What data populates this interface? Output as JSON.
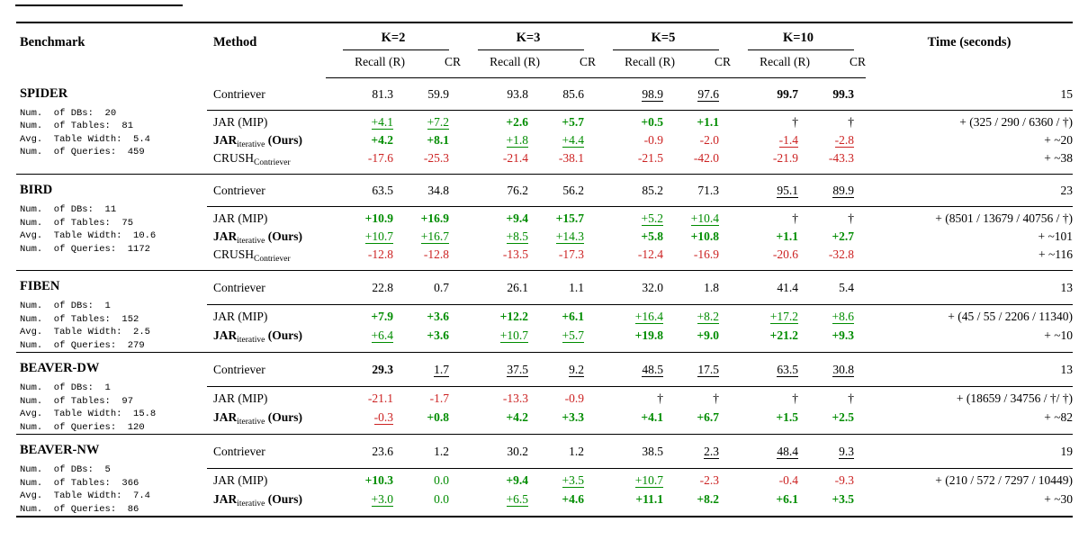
{
  "colors": {
    "green": "#008C00",
    "red": "#CC2222",
    "text": "#000000",
    "rule": "#000000"
  },
  "header": {
    "benchmark": "Benchmark",
    "method": "Method",
    "k_groups": [
      "K=2",
      "K=3",
      "K=5",
      "K=10"
    ],
    "sub_recall": "Recall (R)",
    "sub_cr": "CR",
    "time": "Time (seconds)"
  },
  "sections": [
    {
      "benchmark": "SPIDER",
      "stats": [
        "Num.  of DBs:  20",
        "Num.  of Tables:  81",
        "Avg.  Table Width:  5.4",
        "Num.  of Queries:  459"
      ],
      "contriever": {
        "method": [
          {
            "t": "Contriever"
          }
        ],
        "cells": [
          {
            "t": "81.3"
          },
          {
            "t": "59.9"
          },
          {
            "t": "93.8"
          },
          {
            "t": "85.6"
          },
          {
            "t": "98.9",
            "u": 1
          },
          {
            "t": "97.6",
            "u": 1
          },
          {
            "t": "99.7",
            "b": 1
          },
          {
            "t": "99.3",
            "b": 1
          }
        ],
        "time": "15"
      },
      "delta_rows": [
        {
          "method": [
            {
              "t": "JAR (MIP)"
            }
          ],
          "cells": [
            {
              "t": "+4.1",
              "c": "g",
              "u": 1
            },
            {
              "t": "+7.2",
              "c": "g",
              "u": 1
            },
            {
              "t": "+2.6",
              "c": "g",
              "b": 1
            },
            {
              "t": "+5.7",
              "c": "g",
              "b": 1
            },
            {
              "t": "+0.5",
              "c": "g",
              "b": 1
            },
            {
              "t": "+1.1",
              "c": "g",
              "b": 1
            },
            {
              "t": "†"
            },
            {
              "t": "†"
            }
          ],
          "time": "+ (325 / 290 / 6360 / †)"
        },
        {
          "method": [
            {
              "t": "JAR",
              "b": 1
            },
            {
              "t": "iterative",
              "sub": 1
            },
            {
              "t": " (Ours)",
              "b": 1
            }
          ],
          "cells": [
            {
              "t": "+4.2",
              "c": "g",
              "b": 1
            },
            {
              "t": "+8.1",
              "c": "g",
              "b": 1
            },
            {
              "t": "+1.8",
              "c": "g",
              "u": 1
            },
            {
              "t": "+4.4",
              "c": "g",
              "u": 1
            },
            {
              "t": "-0.9",
              "c": "r"
            },
            {
              "t": "-2.0",
              "c": "r"
            },
            {
              "t": "-1.4",
              "c": "r",
              "u": 1
            },
            {
              "t": "-2.8",
              "c": "r",
              "u": 1
            }
          ],
          "time": "+ ~20"
        },
        {
          "method": [
            {
              "t": "CRUSH"
            },
            {
              "t": "Contriever",
              "sub": 1
            }
          ],
          "cells": [
            {
              "t": "-17.6",
              "c": "r"
            },
            {
              "t": "-25.3",
              "c": "r"
            },
            {
              "t": "-21.4",
              "c": "r"
            },
            {
              "t": "-38.1",
              "c": "r"
            },
            {
              "t": "-21.5",
              "c": "r"
            },
            {
              "t": "-42.0",
              "c": "r"
            },
            {
              "t": "-21.9",
              "c": "r"
            },
            {
              "t": "-43.3",
              "c": "r"
            }
          ],
          "time": "+ ~38"
        }
      ]
    },
    {
      "benchmark": "BIRD",
      "stats": [
        "Num.  of DBs:  11",
        "Num.  of Tables:  75",
        "Avg.  Table Width:  10.6",
        "Num.  of Queries:  1172"
      ],
      "contriever": {
        "method": [
          {
            "t": "Contriever"
          }
        ],
        "cells": [
          {
            "t": "63.5"
          },
          {
            "t": "34.8"
          },
          {
            "t": "76.2"
          },
          {
            "t": "56.2"
          },
          {
            "t": "85.2"
          },
          {
            "t": "71.3"
          },
          {
            "t": "95.1",
            "u": 1
          },
          {
            "t": "89.9",
            "u": 1
          }
        ],
        "time": "23"
      },
      "delta_rows": [
        {
          "method": [
            {
              "t": "JAR (MIP)"
            }
          ],
          "cells": [
            {
              "t": "+10.9",
              "c": "g",
              "b": 1
            },
            {
              "t": "+16.9",
              "c": "g",
              "b": 1
            },
            {
              "t": "+9.4",
              "c": "g",
              "b": 1
            },
            {
              "t": "+15.7",
              "c": "g",
              "b": 1
            },
            {
              "t": "+5.2",
              "c": "g",
              "u": 1
            },
            {
              "t": "+10.4",
              "c": "g",
              "u": 1
            },
            {
              "t": "†"
            },
            {
              "t": "†"
            }
          ],
          "time": "+ (8501 / 13679 / 40756 / †)"
        },
        {
          "method": [
            {
              "t": "JAR",
              "b": 1
            },
            {
              "t": "iterative",
              "sub": 1
            },
            {
              "t": " (Ours)",
              "b": 1
            }
          ],
          "cells": [
            {
              "t": "+10.7",
              "c": "g",
              "u": 1
            },
            {
              "t": "+16.7",
              "c": "g",
              "u": 1
            },
            {
              "t": "+8.5",
              "c": "g",
              "u": 1
            },
            {
              "t": "+14.3",
              "c": "g",
              "u": 1
            },
            {
              "t": "+5.8",
              "c": "g",
              "b": 1
            },
            {
              "t": "+10.8",
              "c": "g",
              "b": 1
            },
            {
              "t": "+1.1",
              "c": "g",
              "b": 1
            },
            {
              "t": "+2.7",
              "c": "g",
              "b": 1
            }
          ],
          "time": "+ ~101"
        },
        {
          "method": [
            {
              "t": "CRUSH"
            },
            {
              "t": "Contriever",
              "sub": 1
            }
          ],
          "cells": [
            {
              "t": "-12.8",
              "c": "r"
            },
            {
              "t": "-12.8",
              "c": "r"
            },
            {
              "t": "-13.5",
              "c": "r"
            },
            {
              "t": "-17.3",
              "c": "r"
            },
            {
              "t": "-12.4",
              "c": "r"
            },
            {
              "t": "-16.9",
              "c": "r"
            },
            {
              "t": "-20.6",
              "c": "r"
            },
            {
              "t": "-32.8",
              "c": "r"
            }
          ],
          "time": "+ ~116"
        }
      ]
    },
    {
      "benchmark": "FIBEN",
      "stats": [
        "Num.  of DBs:  1",
        "Num.  of Tables:  152",
        "Avg.  Table Width:  2.5",
        "Num.  of Queries:  279"
      ],
      "contriever": {
        "method": [
          {
            "t": "Contriever"
          }
        ],
        "cells": [
          {
            "t": "22.8"
          },
          {
            "t": "0.7"
          },
          {
            "t": "26.1"
          },
          {
            "t": "1.1"
          },
          {
            "t": "32.0"
          },
          {
            "t": "1.8"
          },
          {
            "t": "41.4"
          },
          {
            "t": "5.4"
          }
        ],
        "time": "13"
      },
      "delta_rows": [
        {
          "method": [
            {
              "t": "JAR (MIP)"
            }
          ],
          "cells": [
            {
              "t": "+7.9",
              "c": "g",
              "b": 1
            },
            {
              "t": "+3.6",
              "c": "g",
              "b": 1
            },
            {
              "t": "+12.2",
              "c": "g",
              "b": 1
            },
            {
              "t": "+6.1",
              "c": "g",
              "b": 1
            },
            {
              "t": "+16.4",
              "c": "g",
              "u": 1
            },
            {
              "t": "+8.2",
              "c": "g",
              "u": 1
            },
            {
              "t": "+17.2",
              "c": "g",
              "u": 1
            },
            {
              "t": "+8.6",
              "c": "g",
              "u": 1
            }
          ],
          "time": "+ (45 / 55 / 2206 / 11340)"
        },
        {
          "method": [
            {
              "t": "JAR",
              "b": 1
            },
            {
              "t": "iterative",
              "sub": 1
            },
            {
              "t": " (Ours)",
              "b": 1
            }
          ],
          "cells": [
            {
              "t": "+6.4",
              "c": "g",
              "u": 1
            },
            {
              "t": "+3.6",
              "c": "g",
              "b": 1
            },
            {
              "t": "+10.7",
              "c": "g",
              "u": 1
            },
            {
              "t": "+5.7",
              "c": "g",
              "u": 1
            },
            {
              "t": "+19.8",
              "c": "g",
              "b": 1
            },
            {
              "t": "+9.0",
              "c": "g",
              "b": 1
            },
            {
              "t": "+21.2",
              "c": "g",
              "b": 1
            },
            {
              "t": "+9.3",
              "c": "g",
              "b": 1
            }
          ],
          "time": "+ ~10"
        }
      ]
    },
    {
      "benchmark": "BEAVER-DW",
      "stats": [
        "Num.  of DBs:  1",
        "Num.  of Tables:  97",
        "Avg.  Table Width:  15.8",
        "Num.  of Queries:  120"
      ],
      "contriever": {
        "method": [
          {
            "t": "Contriever"
          }
        ],
        "cells": [
          {
            "t": "29.3",
            "b": 1
          },
          {
            "t": "1.7",
            "u": 1
          },
          {
            "t": "37.5",
            "u": 1
          },
          {
            "t": "9.2",
            "u": 1
          },
          {
            "t": "48.5",
            "u": 1
          },
          {
            "t": "17.5",
            "u": 1
          },
          {
            "t": "63.5",
            "u": 1
          },
          {
            "t": "30.8",
            "u": 1
          }
        ],
        "time": "13"
      },
      "delta_rows": [
        {
          "method": [
            {
              "t": "JAR (MIP)"
            }
          ],
          "cells": [
            {
              "t": "-21.1",
              "c": "r"
            },
            {
              "t": "-1.7",
              "c": "r"
            },
            {
              "t": "-13.3",
              "c": "r"
            },
            {
              "t": "-0.9",
              "c": "r"
            },
            {
              "t": "†"
            },
            {
              "t": "†"
            },
            {
              "t": "†"
            },
            {
              "t": "†"
            }
          ],
          "time": "+ (18659 / 34756 / †/ †)"
        },
        {
          "method": [
            {
              "t": "JAR",
              "b": 1
            },
            {
              "t": "iterative",
              "sub": 1
            },
            {
              "t": " (Ours)",
              "b": 1
            }
          ],
          "cells": [
            {
              "t": "-0.3",
              "c": "r",
              "u": 1
            },
            {
              "t": "+0.8",
              "c": "g",
              "b": 1
            },
            {
              "t": "+4.2",
              "c": "g",
              "b": 1
            },
            {
              "t": "+3.3",
              "c": "g",
              "b": 1
            },
            {
              "t": "+4.1",
              "c": "g",
              "b": 1
            },
            {
              "t": "+6.7",
              "c": "g",
              "b": 1
            },
            {
              "t": "+1.5",
              "c": "g",
              "b": 1
            },
            {
              "t": "+2.5",
              "c": "g",
              "b": 1
            }
          ],
          "time": "+ ~82"
        }
      ]
    },
    {
      "benchmark": "BEAVER-NW",
      "stats": [
        "Num.  of DBs:  5",
        "Num.  of Tables:  366",
        "Avg.  Table Width:  7.4",
        "Num.  of Queries:  86"
      ],
      "contriever": {
        "method": [
          {
            "t": "Contriever"
          }
        ],
        "cells": [
          {
            "t": "23.6"
          },
          {
            "t": "1.2"
          },
          {
            "t": "30.2"
          },
          {
            "t": "1.2"
          },
          {
            "t": "38.5"
          },
          {
            "t": "2.3",
            "u": 1
          },
          {
            "t": "48.4",
            "u": 1
          },
          {
            "t": "9.3",
            "u": 1
          }
        ],
        "time": "19"
      },
      "delta_rows": [
        {
          "method": [
            {
              "t": "JAR (MIP)"
            }
          ],
          "cells": [
            {
              "t": "+10.3",
              "c": "g",
              "b": 1
            },
            {
              "t": "0.0",
              "c": "g"
            },
            {
              "t": "+9.4",
              "c": "g",
              "b": 1
            },
            {
              "t": "+3.5",
              "c": "g",
              "u": 1
            },
            {
              "t": "+10.7",
              "c": "g",
              "u": 1
            },
            {
              "t": "-2.3",
              "c": "r"
            },
            {
              "t": "-0.4",
              "c": "r"
            },
            {
              "t": "-9.3",
              "c": "r"
            }
          ],
          "time": "+ (210 / 572 / 7297 / 10449)"
        },
        {
          "method": [
            {
              "t": "JAR",
              "b": 1
            },
            {
              "t": "iterative",
              "sub": 1
            },
            {
              "t": " (Ours)",
              "b": 1
            }
          ],
          "cells": [
            {
              "t": "+3.0",
              "c": "g",
              "u": 1
            },
            {
              "t": "0.0",
              "c": "g"
            },
            {
              "t": "+6.5",
              "c": "g",
              "u": 1
            },
            {
              "t": "+4.6",
              "c": "g",
              "b": 1
            },
            {
              "t": "+11.1",
              "c": "g",
              "b": 1
            },
            {
              "t": "+8.2",
              "c": "g",
              "b": 1
            },
            {
              "t": "+6.1",
              "c": "g",
              "b": 1
            },
            {
              "t": "+3.5",
              "c": "g",
              "b": 1
            }
          ],
          "time": "+ ~30"
        }
      ]
    }
  ]
}
